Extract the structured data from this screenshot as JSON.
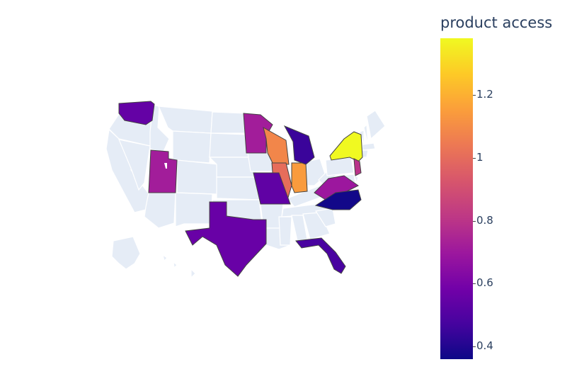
{
  "colorbar": {
    "title": "product access",
    "min": 0.36,
    "max": 1.38,
    "ticks": [
      {
        "value": 1.2,
        "label": "1.2"
      },
      {
        "value": 1.0,
        "label": "1"
      },
      {
        "value": 0.8,
        "label": "0.8"
      },
      {
        "value": 0.6,
        "label": "0.6"
      },
      {
        "value": 0.4,
        "label": "0.4"
      }
    ]
  },
  "colors": {
    "land": "#e5ecf6",
    "border": "#ffffff",
    "highlight_border": "#444444",
    "text": "#2a3f5f"
  },
  "chart_data": {
    "type": "choropleth",
    "scope": "usa",
    "colorscale": "plasma",
    "colorbar_title": "product access",
    "colorbar_range": [
      0.36,
      1.38
    ],
    "states": [
      {
        "state": "WA",
        "value": 0.55
      },
      {
        "state": "UT",
        "value": 0.72
      },
      {
        "state": "TX",
        "value": 0.56
      },
      {
        "state": "MN",
        "value": 0.72
      },
      {
        "state": "WI",
        "value": 1.08
      },
      {
        "state": "IL",
        "value": 1.0
      },
      {
        "state": "IN",
        "value": 1.14
      },
      {
        "state": "MI",
        "value": 0.45
      },
      {
        "state": "MO",
        "value": 0.54
      },
      {
        "state": "VA",
        "value": 0.7
      },
      {
        "state": "NC",
        "value": 0.37
      },
      {
        "state": "FL",
        "value": 0.48
      },
      {
        "state": "NY",
        "value": 1.38
      },
      {
        "state": "NJ",
        "value": 0.8
      }
    ]
  }
}
